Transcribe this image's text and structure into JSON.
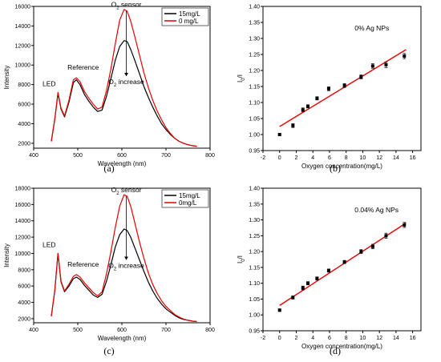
{
  "captions": [
    "(a)",
    "(b)",
    "(c)",
    "(d)"
  ],
  "chart_data": [
    {
      "type": "line",
      "xlabel": "Wavelength (nm)",
      "ylabel": "Intensity",
      "xlim": [
        400,
        800
      ],
      "ylim": [
        1500,
        16000
      ],
      "xticks": [
        400,
        500,
        600,
        700,
        800
      ],
      "yticks": [
        2000,
        4000,
        6000,
        8000,
        10000,
        12000,
        14000,
        16000
      ],
      "legend_position": "top-right",
      "annotations": {
        "led": "LED",
        "reference": "Reference",
        "sensor_prefix": "O",
        "sensor_sub": "2",
        "sensor_suffix": " sensor",
        "increase_prefix": "O",
        "increase_sub": "2",
        "increase_suffix": " increase"
      },
      "series": [
        {
          "name": "15mg/L",
          "color": "#000000",
          "x": [
            440,
            448,
            455,
            462,
            470,
            480,
            490,
            497,
            505,
            515,
            525,
            535,
            545,
            555,
            565,
            575,
            585,
            595,
            605,
            612,
            620,
            630,
            640,
            650,
            660,
            670,
            680,
            690,
            700,
            710,
            720,
            730,
            740,
            750,
            760,
            770
          ],
          "y": [
            2200,
            4500,
            7100,
            5500,
            4700,
            6200,
            8200,
            8500,
            8000,
            7000,
            6300,
            5700,
            5250,
            5400,
            6800,
            8600,
            10500,
            11900,
            12500,
            12400,
            11600,
            10400,
            9100,
            7800,
            6700,
            5700,
            4800,
            4000,
            3400,
            2900,
            2500,
            2200,
            2000,
            1850,
            1750,
            1700
          ]
        },
        {
          "name": "0 mg/L",
          "color": "#e60000",
          "x": [
            440,
            448,
            455,
            462,
            470,
            480,
            490,
            497,
            505,
            515,
            525,
            535,
            545,
            555,
            565,
            575,
            585,
            595,
            605,
            612,
            620,
            630,
            640,
            650,
            660,
            670,
            680,
            690,
            700,
            710,
            720,
            730,
            740,
            750,
            760,
            770
          ],
          "y": [
            2200,
            4500,
            7200,
            5600,
            4800,
            6400,
            8500,
            8700,
            8300,
            7300,
            6600,
            6000,
            5500,
            5700,
            7400,
            9600,
            12200,
            14600,
            15700,
            15500,
            14500,
            12800,
            11000,
            9200,
            7700,
            6400,
            5300,
            4400,
            3600,
            3000,
            2500,
            2200,
            2000,
            1850,
            1750,
            1700
          ]
        }
      ]
    },
    {
      "type": "scatter",
      "xlabel": "Oxygen concentration(mg/L)",
      "ylabel": "I0/I",
      "ylabel_main": "I",
      "ylabel_sub": "0",
      "ylabel_tail": "/I",
      "annotation": "0% Ag NPs",
      "xlim": [
        -2,
        17
      ],
      "ylim": [
        0.95,
        1.4
      ],
      "xticks": [
        -2,
        0,
        2,
        4,
        6,
        8,
        10,
        12,
        14,
        16
      ],
      "yticks": [
        0.95,
        1.0,
        1.05,
        1.1,
        1.15,
        1.2,
        1.25,
        1.3,
        1.35,
        1.4
      ],
      "points": {
        "x": [
          0,
          1.6,
          2.8,
          3.4,
          4.5,
          5.9,
          7.8,
          9.8,
          11.2,
          12.8,
          15.0
        ],
        "y": [
          1.0,
          1.028,
          1.077,
          1.088,
          1.113,
          1.143,
          1.153,
          1.18,
          1.214,
          1.218,
          1.245
        ],
        "err": [
          0.004,
          0.006,
          0.006,
          0.005,
          0.005,
          0.006,
          0.006,
          0.006,
          0.007,
          0.009,
          0.008
        ]
      },
      "fit": {
        "x": [
          0,
          15.2
        ],
        "y": [
          1.025,
          1.265
        ],
        "color": "#e60000"
      }
    },
    {
      "type": "line",
      "xlabel": "Wavelength (nm)",
      "ylabel": "Intensity",
      "xlim": [
        400,
        800
      ],
      "ylim": [
        1500,
        18000
      ],
      "xticks": [
        400,
        500,
        600,
        700,
        800
      ],
      "yticks": [
        2000,
        4000,
        6000,
        8000,
        10000,
        12000,
        14000,
        16000,
        18000
      ],
      "legend_position": "top-right",
      "annotations": {
        "led": "LED",
        "reference": "Reference",
        "sensor_prefix": "O",
        "sensor_sub": "2",
        "sensor_suffix": " sensor",
        "increase_prefix": "O",
        "increase_sub": "2",
        "increase_suffix": " increase"
      },
      "series": [
        {
          "name": "15mg/L",
          "color": "#000000",
          "x": [
            440,
            448,
            455,
            462,
            470,
            480,
            490,
            497,
            505,
            515,
            525,
            535,
            545,
            555,
            565,
            575,
            585,
            595,
            605,
            612,
            620,
            630,
            640,
            650,
            660,
            670,
            680,
            690,
            700,
            710,
            720,
            730,
            740,
            750,
            760,
            770
          ],
          "y": [
            2300,
            5500,
            10000,
            6500,
            5300,
            6000,
            6900,
            7100,
            6800,
            6100,
            5500,
            4900,
            4600,
            5000,
            6600,
            8600,
            10800,
            12300,
            13000,
            12800,
            12000,
            10600,
            9200,
            7800,
            6500,
            5400,
            4500,
            3800,
            3200,
            2800,
            2400,
            2100,
            1900,
            1800,
            1700,
            1650
          ]
        },
        {
          "name": "0mg/L",
          "color": "#e60000",
          "x": [
            440,
            448,
            455,
            462,
            470,
            480,
            490,
            497,
            505,
            515,
            525,
            535,
            545,
            555,
            565,
            575,
            585,
            595,
            605,
            612,
            620,
            630,
            640,
            650,
            660,
            670,
            680,
            690,
            700,
            710,
            720,
            730,
            740,
            750,
            760,
            770
          ],
          "y": [
            2300,
            5500,
            10000,
            6600,
            5400,
            6200,
            7200,
            7400,
            7100,
            6400,
            5800,
            5200,
            4800,
            5300,
            7500,
            10200,
            13200,
            15800,
            17200,
            17000,
            15800,
            13600,
            11400,
            9400,
            7600,
            6200,
            5100,
            4200,
            3500,
            3000,
            2500,
            2200,
            1950,
            1800,
            1700,
            1650
          ]
        }
      ]
    },
    {
      "type": "scatter",
      "xlabel": "Oxygen concentration(mg/L)",
      "ylabel": "I0/I",
      "ylabel_main": "I",
      "ylabel_sub": "0",
      "ylabel_tail": "/I",
      "annotation": "0.04% Ag NPs",
      "xlim": [
        -2,
        17
      ],
      "ylim": [
        0.95,
        1.4
      ],
      "xticks": [
        -2,
        0,
        2,
        4,
        6,
        8,
        10,
        12,
        14,
        16
      ],
      "yticks": [
        0.95,
        1.0,
        1.05,
        1.1,
        1.15,
        1.2,
        1.25,
        1.3,
        1.35,
        1.4
      ],
      "points": {
        "x": [
          0,
          1.6,
          2.8,
          3.4,
          4.5,
          5.9,
          7.8,
          9.8,
          11.2,
          12.8,
          15.0
        ],
        "y": [
          1.015,
          1.055,
          1.085,
          1.1,
          1.115,
          1.14,
          1.167,
          1.2,
          1.216,
          1.25,
          1.284
        ],
        "err": [
          0.004,
          0.005,
          0.006,
          0.005,
          0.005,
          0.005,
          0.005,
          0.006,
          0.007,
          0.008,
          0.008
        ]
      },
      "fit": {
        "x": [
          0,
          15.2
        ],
        "y": [
          1.03,
          1.29
        ],
        "color": "#e60000"
      }
    }
  ]
}
